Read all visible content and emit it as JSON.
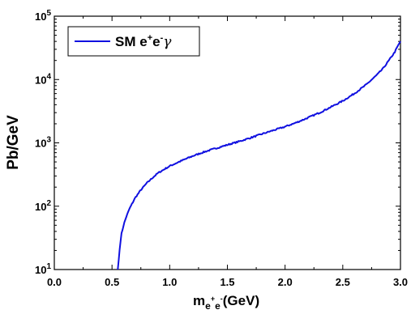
{
  "chart_data": {
    "type": "line",
    "xlabel": {
      "base": "m",
      "sub1": "e",
      "sup1": "+",
      "sub2": "e",
      "sup2": "-",
      "unit": "(GeV)"
    },
    "ylabel": "Pb/GeV",
    "xlim": [
      0.0,
      3.0
    ],
    "ylim": [
      10,
      100000
    ],
    "yscale": "log",
    "grid": false,
    "legend_position": "top-left",
    "x_ticks": [
      "0.0",
      "0.5",
      "1.0",
      "1.5",
      "2.0",
      "2.5",
      "3.0"
    ],
    "y_ticks": [
      {
        "value": 10,
        "base": "10",
        "exp": "1"
      },
      {
        "value": 100,
        "base": "10",
        "exp": "2"
      },
      {
        "value": 1000,
        "base": "10",
        "exp": "3"
      },
      {
        "value": 10000,
        "base": "10",
        "exp": "4"
      },
      {
        "value": 100000,
        "base": "10",
        "exp": "5"
      }
    ],
    "series": [
      {
        "name": "SM e+e-γ",
        "legend": {
          "main": "SM e",
          "sup1": "+",
          "mid": "e",
          "sup2": "-",
          "tail": "γ"
        },
        "color": "#1010e0",
        "x": [
          0.55,
          0.56,
          0.57,
          0.58,
          0.6,
          0.62,
          0.65,
          0.7,
          0.75,
          0.8,
          0.85,
          0.9,
          0.95,
          1.0,
          1.1,
          1.2,
          1.3,
          1.4,
          1.5,
          1.6,
          1.7,
          1.8,
          1.9,
          2.0,
          2.1,
          2.2,
          2.3,
          2.4,
          2.5,
          2.6,
          2.7,
          2.8,
          2.85,
          2.9,
          2.95,
          2.97,
          3.0
        ],
        "y": [
          10,
          15,
          25,
          35,
          50,
          65,
          90,
          135,
          180,
          230,
          280,
          335,
          380,
          430,
          520,
          620,
          720,
          820,
          930,
          1050,
          1200,
          1380,
          1580,
          1800,
          2100,
          2500,
          3000,
          3700,
          4600,
          6000,
          8200,
          12000,
          15000,
          20000,
          27000,
          32000,
          40000
        ]
      }
    ]
  }
}
